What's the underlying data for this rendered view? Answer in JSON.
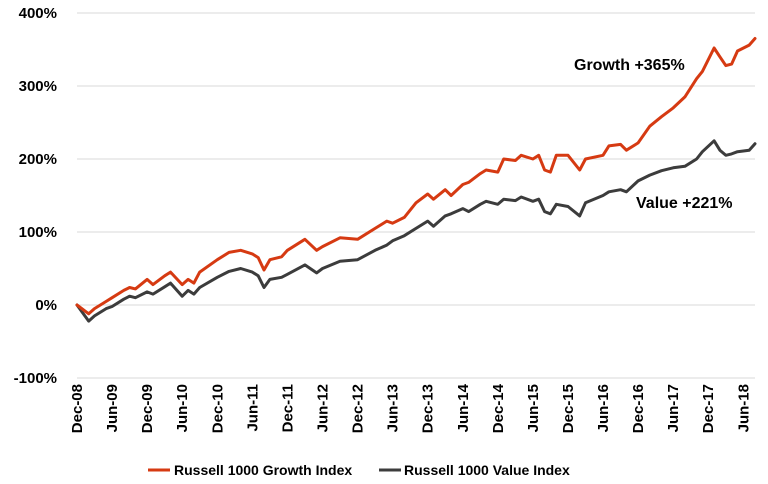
{
  "chart_data": {
    "type": "line",
    "title": "",
    "xlabel": "",
    "ylabel": "",
    "ylim": [
      -100,
      400
    ],
    "y_ticks": [
      "400%",
      "300%",
      "200%",
      "100%",
      "0%",
      "-100%"
    ],
    "y_tick_values": [
      400,
      300,
      200,
      100,
      0,
      -100
    ],
    "x_ticks": [
      "Dec-08",
      "Jun-09",
      "Dec-09",
      "Jun-10",
      "Dec-10",
      "Jun-11",
      "Dec-11",
      "Jun-12",
      "Dec-12",
      "Jun-13",
      "Dec-13",
      "Jun-14",
      "Dec-14",
      "Jun-15",
      "Dec-15",
      "Jun-16",
      "Dec-16",
      "Jun-17",
      "Dec-17",
      "Jun-18"
    ],
    "grid": "horizontal",
    "legend_position": "bottom",
    "series": [
      {
        "name": "Russell 1000 Growth Index",
        "color": "#D63A12",
        "points": [
          [
            "Dec-08",
            0
          ],
          [
            "Feb-09",
            -12
          ],
          [
            "Mar-09",
            -5
          ],
          [
            "May-09",
            5
          ],
          [
            "Jun-09",
            10
          ],
          [
            "Aug-09",
            20
          ],
          [
            "Sep-09",
            24
          ],
          [
            "Oct-09",
            22
          ],
          [
            "Dec-09",
            35
          ],
          [
            "Jan-10",
            28
          ],
          [
            "Mar-10",
            40
          ],
          [
            "Apr-10",
            45
          ],
          [
            "Jun-10",
            28
          ],
          [
            "Jul-10",
            35
          ],
          [
            "Aug-10",
            30
          ],
          [
            "Sep-10",
            45
          ],
          [
            "Dec-10",
            62
          ],
          [
            "Feb-11",
            72
          ],
          [
            "Apr-11",
            75
          ],
          [
            "Jun-11",
            70
          ],
          [
            "Jul-11",
            65
          ],
          [
            "Aug-11",
            48
          ],
          [
            "Sep-11",
            62
          ],
          [
            "Nov-11",
            66
          ],
          [
            "Dec-11",
            75
          ],
          [
            "Mar-12",
            90
          ],
          [
            "May-12",
            75
          ],
          [
            "Jun-12",
            80
          ],
          [
            "Sep-12",
            92
          ],
          [
            "Dec-12",
            90
          ],
          [
            "Mar-13",
            105
          ],
          [
            "May-13",
            115
          ],
          [
            "Jun-13",
            112
          ],
          [
            "Aug-13",
            120
          ],
          [
            "Oct-13",
            140
          ],
          [
            "Dec-13",
            152
          ],
          [
            "Jan-14",
            145
          ],
          [
            "Mar-14",
            158
          ],
          [
            "Apr-14",
            150
          ],
          [
            "Jun-14",
            165
          ],
          [
            "Jul-14",
            168
          ],
          [
            "Sep-14",
            180
          ],
          [
            "Oct-14",
            185
          ],
          [
            "Dec-14",
            182
          ],
          [
            "Jan-15",
            200
          ],
          [
            "Mar-15",
            198
          ],
          [
            "Apr-15",
            205
          ],
          [
            "Jun-15",
            200
          ],
          [
            "Jul-15",
            205
          ],
          [
            "Aug-15",
            185
          ],
          [
            "Sep-15",
            182
          ],
          [
            "Oct-15",
            205
          ],
          [
            "Dec-15",
            205
          ],
          [
            "Feb-16",
            185
          ],
          [
            "Mar-16",
            200
          ],
          [
            "Jun-16",
            205
          ],
          [
            "Jul-16",
            218
          ],
          [
            "Sep-16",
            220
          ],
          [
            "Oct-16",
            212
          ],
          [
            "Dec-16",
            222
          ],
          [
            "Feb-17",
            245
          ],
          [
            "Apr-17",
            258
          ],
          [
            "Jun-17",
            270
          ],
          [
            "Aug-17",
            285
          ],
          [
            "Oct-17",
            310
          ],
          [
            "Nov-17",
            320
          ],
          [
            "Jan-18",
            352
          ],
          [
            "Feb-18",
            340
          ],
          [
            "Mar-18",
            328
          ],
          [
            "Apr-18",
            330
          ],
          [
            "May-18",
            348
          ],
          [
            "Jul-18",
            356
          ],
          [
            "Aug-18",
            365
          ]
        ]
      },
      {
        "name": "Russell 1000 Value Index",
        "color": "#3C3C3C",
        "points": [
          [
            "Dec-08",
            0
          ],
          [
            "Feb-09",
            -22
          ],
          [
            "Mar-09",
            -15
          ],
          [
            "May-09",
            -5
          ],
          [
            "Jun-09",
            -2
          ],
          [
            "Aug-09",
            8
          ],
          [
            "Sep-09",
            12
          ],
          [
            "Oct-09",
            10
          ],
          [
            "Dec-09",
            18
          ],
          [
            "Jan-10",
            15
          ],
          [
            "Mar-10",
            25
          ],
          [
            "Apr-10",
            30
          ],
          [
            "Jun-10",
            12
          ],
          [
            "Jul-10",
            20
          ],
          [
            "Aug-10",
            15
          ],
          [
            "Sep-10",
            24
          ],
          [
            "Dec-10",
            38
          ],
          [
            "Feb-11",
            46
          ],
          [
            "Apr-11",
            50
          ],
          [
            "Jun-11",
            45
          ],
          [
            "Jul-11",
            40
          ],
          [
            "Aug-11",
            24
          ],
          [
            "Sep-11",
            35
          ],
          [
            "Nov-11",
            38
          ],
          [
            "Dec-11",
            42
          ],
          [
            "Mar-12",
            55
          ],
          [
            "May-12",
            44
          ],
          [
            "Jun-12",
            50
          ],
          [
            "Sep-12",
            60
          ],
          [
            "Dec-12",
            62
          ],
          [
            "Mar-13",
            75
          ],
          [
            "May-13",
            82
          ],
          [
            "Jun-13",
            88
          ],
          [
            "Aug-13",
            95
          ],
          [
            "Oct-13",
            105
          ],
          [
            "Dec-13",
            115
          ],
          [
            "Jan-14",
            108
          ],
          [
            "Mar-14",
            122
          ],
          [
            "Apr-14",
            125
          ],
          [
            "Jun-14",
            132
          ],
          [
            "Jul-14",
            128
          ],
          [
            "Sep-14",
            138
          ],
          [
            "Oct-14",
            142
          ],
          [
            "Dec-14",
            138
          ],
          [
            "Jan-15",
            145
          ],
          [
            "Mar-15",
            143
          ],
          [
            "Apr-15",
            148
          ],
          [
            "Jun-15",
            142
          ],
          [
            "Jul-15",
            145
          ],
          [
            "Aug-15",
            128
          ],
          [
            "Sep-15",
            125
          ],
          [
            "Oct-15",
            138
          ],
          [
            "Dec-15",
            135
          ],
          [
            "Feb-16",
            122
          ],
          [
            "Mar-16",
            140
          ],
          [
            "Jun-16",
            150
          ],
          [
            "Jul-16",
            155
          ],
          [
            "Sep-16",
            158
          ],
          [
            "Oct-16",
            155
          ],
          [
            "Dec-16",
            170
          ],
          [
            "Feb-17",
            178
          ],
          [
            "Apr-17",
            184
          ],
          [
            "Jun-17",
            188
          ],
          [
            "Aug-17",
            190
          ],
          [
            "Oct-17",
            200
          ],
          [
            "Nov-17",
            210
          ],
          [
            "Jan-18",
            225
          ],
          [
            "Feb-18",
            212
          ],
          [
            "Mar-18",
            205
          ],
          [
            "Apr-18",
            207
          ],
          [
            "May-18",
            210
          ],
          [
            "Jul-18",
            212
          ],
          [
            "Aug-18",
            221
          ]
        ]
      }
    ],
    "annotations": [
      {
        "text": "Growth +365%",
        "series": "Russell 1000 Growth Index"
      },
      {
        "text": "Value +221%",
        "series": "Russell 1000 Value Index"
      }
    ]
  }
}
